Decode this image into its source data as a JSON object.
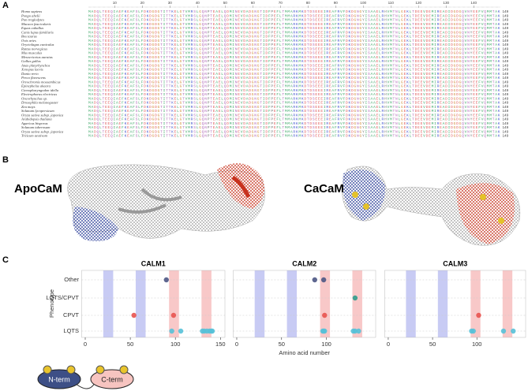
{
  "panels": {
    "a": "A",
    "b": "B",
    "c": "C"
  },
  "alignment": {
    "ruler": [
      10,
      20,
      30,
      40,
      50,
      60,
      70,
      80,
      90,
      100,
      110,
      120,
      130,
      140
    ],
    "rows": [
      {
        "species": "Homo sapiens",
        "end": "149"
      },
      {
        "species": "Pongo abelii",
        "end": "149"
      },
      {
        "species": "Pan troglodytes",
        "end": "149"
      },
      {
        "species": "Macaca fascicularis",
        "end": "149"
      },
      {
        "species": "Equus caballus",
        "end": "149"
      },
      {
        "species": "Canis lupus familiaris",
        "end": "149"
      },
      {
        "species": "Bos taurus",
        "end": "149"
      },
      {
        "species": "Ovis aries",
        "end": "149"
      },
      {
        "species": "Oryctolagus cuniculus",
        "end": "149"
      },
      {
        "species": "Rattus norvegicus",
        "end": "149"
      },
      {
        "species": "Mus musculus",
        "end": "149"
      },
      {
        "species": "Mesocricetus auratus",
        "end": "149"
      },
      {
        "species": "Gallus gallus",
        "end": "149"
      },
      {
        "species": "Anas platyrhynchos",
        "end": "149"
      },
      {
        "species": "Xenopus laevis",
        "end": "149"
      },
      {
        "species": "Danio rerio",
        "end": "149"
      },
      {
        "species": "Perca flavescens",
        "end": "149"
      },
      {
        "species": "Oreochromis mossambicus",
        "end": "149"
      },
      {
        "species": "Epinephelus akaara",
        "end": "149"
      },
      {
        "species": "Ctenopharyngodon idella",
        "end": "149"
      },
      {
        "species": "Electrophorus electricus",
        "end": "149"
      },
      {
        "species": "Oncorhynchus sp.",
        "end": "149"
      },
      {
        "species": "Drosophila melanogaster",
        "end": "149"
      },
      {
        "species": "Zea mays",
        "end": "149"
      },
      {
        "species": "Solanum lycopersicum",
        "end": "149"
      },
      {
        "species": "Oryza sativa subsp. japonica",
        "end": "149"
      },
      {
        "species": "Arabidopsis thaliana",
        "end": "149"
      },
      {
        "species": "Agaricus bisporus",
        "end": "149"
      },
      {
        "species": "Solanum tuberosum",
        "end": "149"
      },
      {
        "species": "Oryza sativa subsp. japonica",
        "end": "149"
      },
      {
        "species": "Triticum aestivum",
        "end": "149"
      }
    ],
    "sequence": "MADQLTEEQIAEFKEAFSLFDKDGDGTITTKELGTVMRSLGQNPTEAELQDMINEVDADGNGTIDFPEFLTMMARKMKDTDSEEEIREAFRVFDKDGNGYISAAELRHVMTNLGEKLTDEEVDEMIREADIDGDGQVNYEEFVQMMTAK"
  },
  "structures": {
    "apo": "ApoCaM",
    "ca": "CaCaM"
  },
  "diagram": {
    "n_term": "N-term",
    "c_term": "C-term"
  },
  "chart_data": [
    {
      "type": "scatter",
      "title": "CALM1",
      "ylabel": "Phenotype",
      "categories": [
        "LQTS",
        "CPVT",
        "LQTS/CPVT",
        "Other"
      ],
      "category_colors": [
        "#56c1d8",
        "#e8534f",
        "#2f9c8c",
        "#4c5684"
      ],
      "xlim": [
        -4,
        155
      ],
      "xticks": [
        0,
        50,
        100,
        150
      ],
      "bands": [
        {
          "range": [
            20,
            31
          ],
          "color": "#c8cbf4"
        },
        {
          "range": [
            56,
            67
          ],
          "color": "#c8cbf4"
        },
        {
          "range": [
            93,
            104
          ],
          "color": "#f8c8c8"
        },
        {
          "range": [
            129,
            140
          ],
          "color": "#f8c8c8"
        }
      ],
      "x": [
        90,
        54,
        98,
        96,
        106,
        130,
        132,
        135,
        138,
        140,
        141
      ],
      "y": [
        "Other",
        "CPVT",
        "CPVT",
        "LQTS",
        "LQTS",
        "LQTS",
        "LQTS",
        "LQTS",
        "LQTS",
        "LQTS",
        "LQTS"
      ]
    },
    {
      "type": "scatter",
      "title": "CALM2",
      "xlabel": "Amino acid number",
      "xlim": [
        -4,
        155
      ],
      "xticks": [
        0,
        50,
        100
      ],
      "bands": [
        {
          "range": [
            20,
            31
          ],
          "color": "#c8cbf4"
        },
        {
          "range": [
            56,
            67
          ],
          "color": "#c8cbf4"
        },
        {
          "range": [
            93,
            104
          ],
          "color": "#f8c8c8"
        },
        {
          "range": [
            129,
            140
          ],
          "color": "#f8c8c8"
        }
      ],
      "x": [
        87,
        97,
        132,
        98,
        96,
        97,
        98,
        130,
        132,
        136
      ],
      "y": [
        "Other",
        "Other",
        "LQTS/CPVT",
        "CPVT",
        "LQTS",
        "LQTS",
        "LQTS",
        "LQTS",
        "LQTS",
        "LQTS"
      ]
    },
    {
      "type": "scatter",
      "title": "CALM3",
      "xlim": [
        -4,
        155
      ],
      "xticks": [
        0,
        50,
        100
      ],
      "bands": [
        {
          "range": [
            20,
            31
          ],
          "color": "#c8cbf4"
        },
        {
          "range": [
            56,
            67
          ],
          "color": "#c8cbf4"
        },
        {
          "range": [
            93,
            104
          ],
          "color": "#f8c8c8"
        },
        {
          "range": [
            129,
            140
          ],
          "color": "#f8c8c8"
        }
      ],
      "x": [
        102,
        94,
        96,
        130,
        141
      ],
      "y": [
        "CPVT",
        "LQTS",
        "LQTS",
        "LQTS",
        "LQTS"
      ]
    }
  ]
}
